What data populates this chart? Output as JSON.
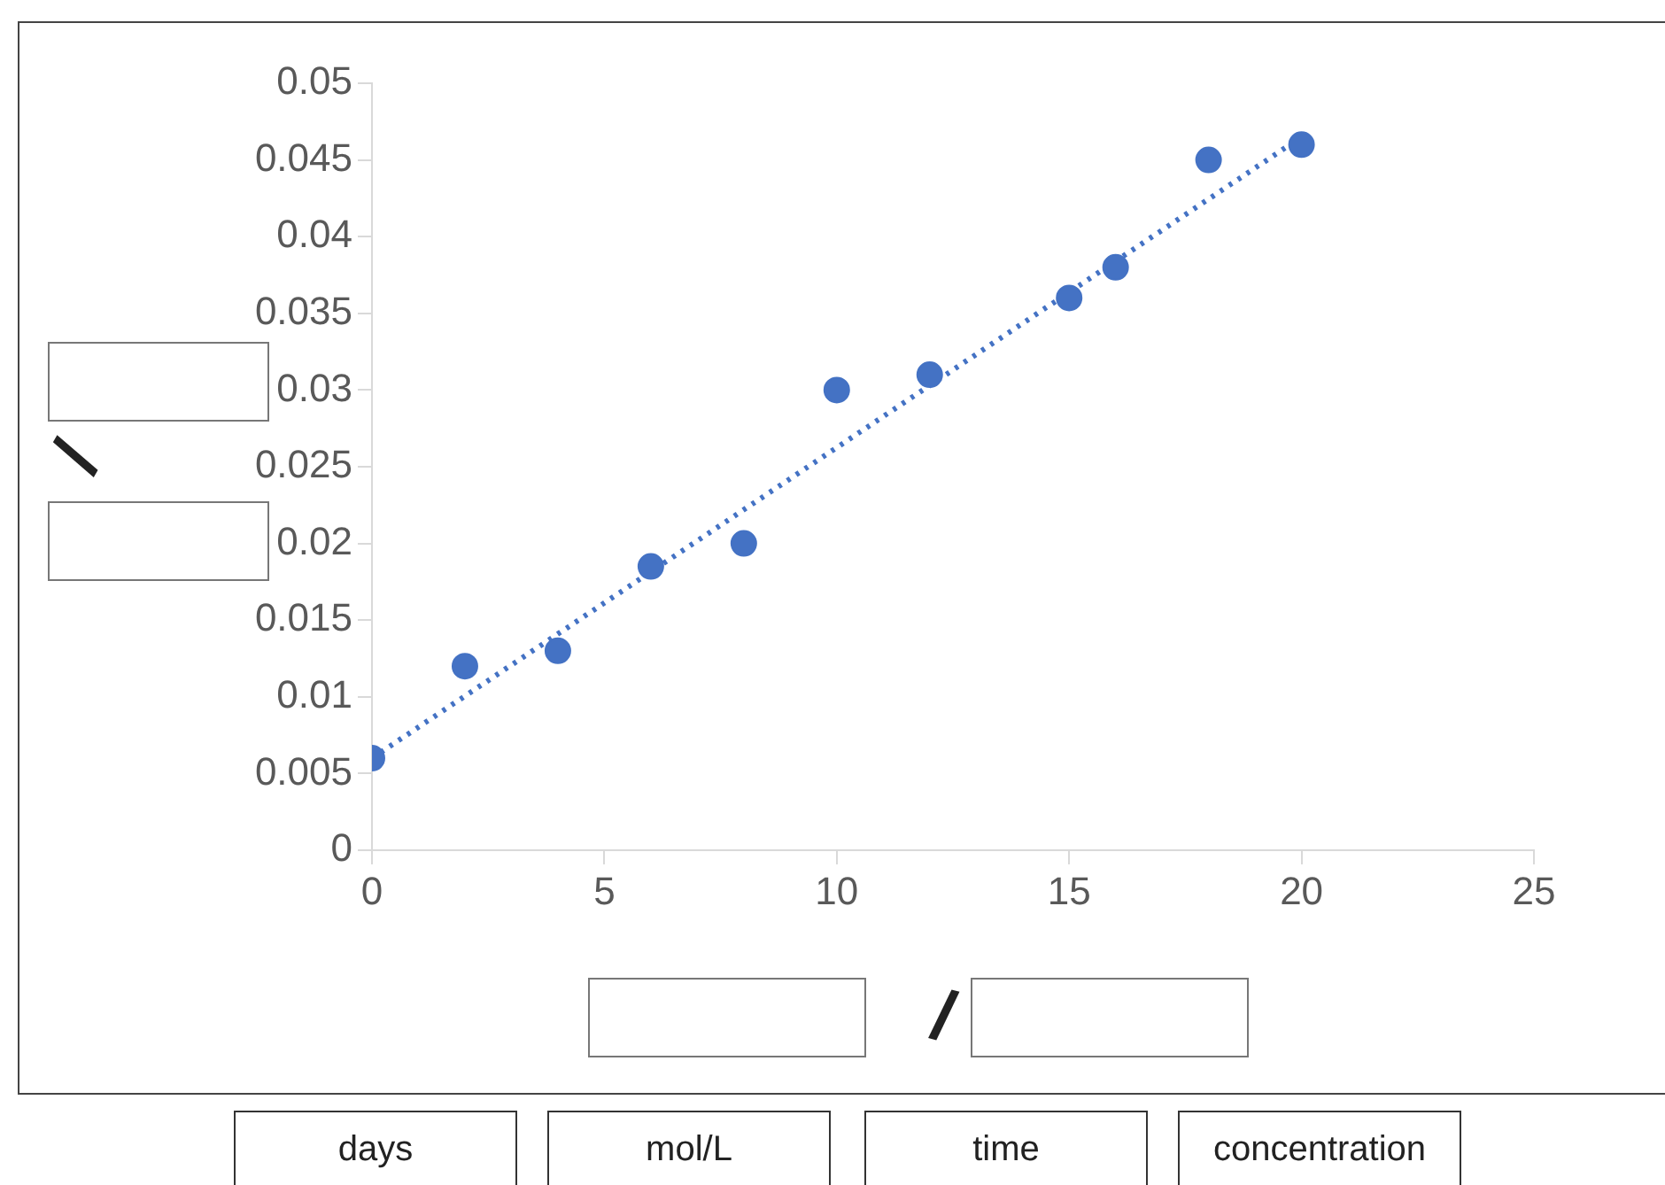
{
  "chart_data": {
    "type": "scatter",
    "xlim": [
      0,
      25
    ],
    "xticks": [
      0,
      5,
      10,
      15,
      20,
      25
    ],
    "ylim": [
      0,
      0.05
    ],
    "yticks": [
      0,
      0.005,
      0.01,
      0.015,
      0.02,
      0.025,
      0.03,
      0.035,
      0.04,
      0.045,
      0.05
    ],
    "grid": false,
    "legend": false,
    "series": [
      {
        "color": "#4472c4",
        "marker": "circle",
        "x": [
          0,
          2,
          4,
          6,
          8,
          10,
          12,
          15,
          16,
          18,
          20
        ],
        "values": [
          0.006,
          0.012,
          0.013,
          0.0185,
          0.02,
          0.03,
          0.031,
          0.036,
          0.038,
          0.045,
          0.046
        ]
      },
      {
        "type": "line",
        "color": "#4472c4",
        "marker": "none",
        "line_style": "dotted",
        "x": [
          0,
          20
        ],
        "values": [
          0.006,
          0.0465
        ]
      }
    ],
    "annotations": [
      "/",
      "/",
      "days",
      "mol/L",
      "time",
      "concentration"
    ]
  }
}
